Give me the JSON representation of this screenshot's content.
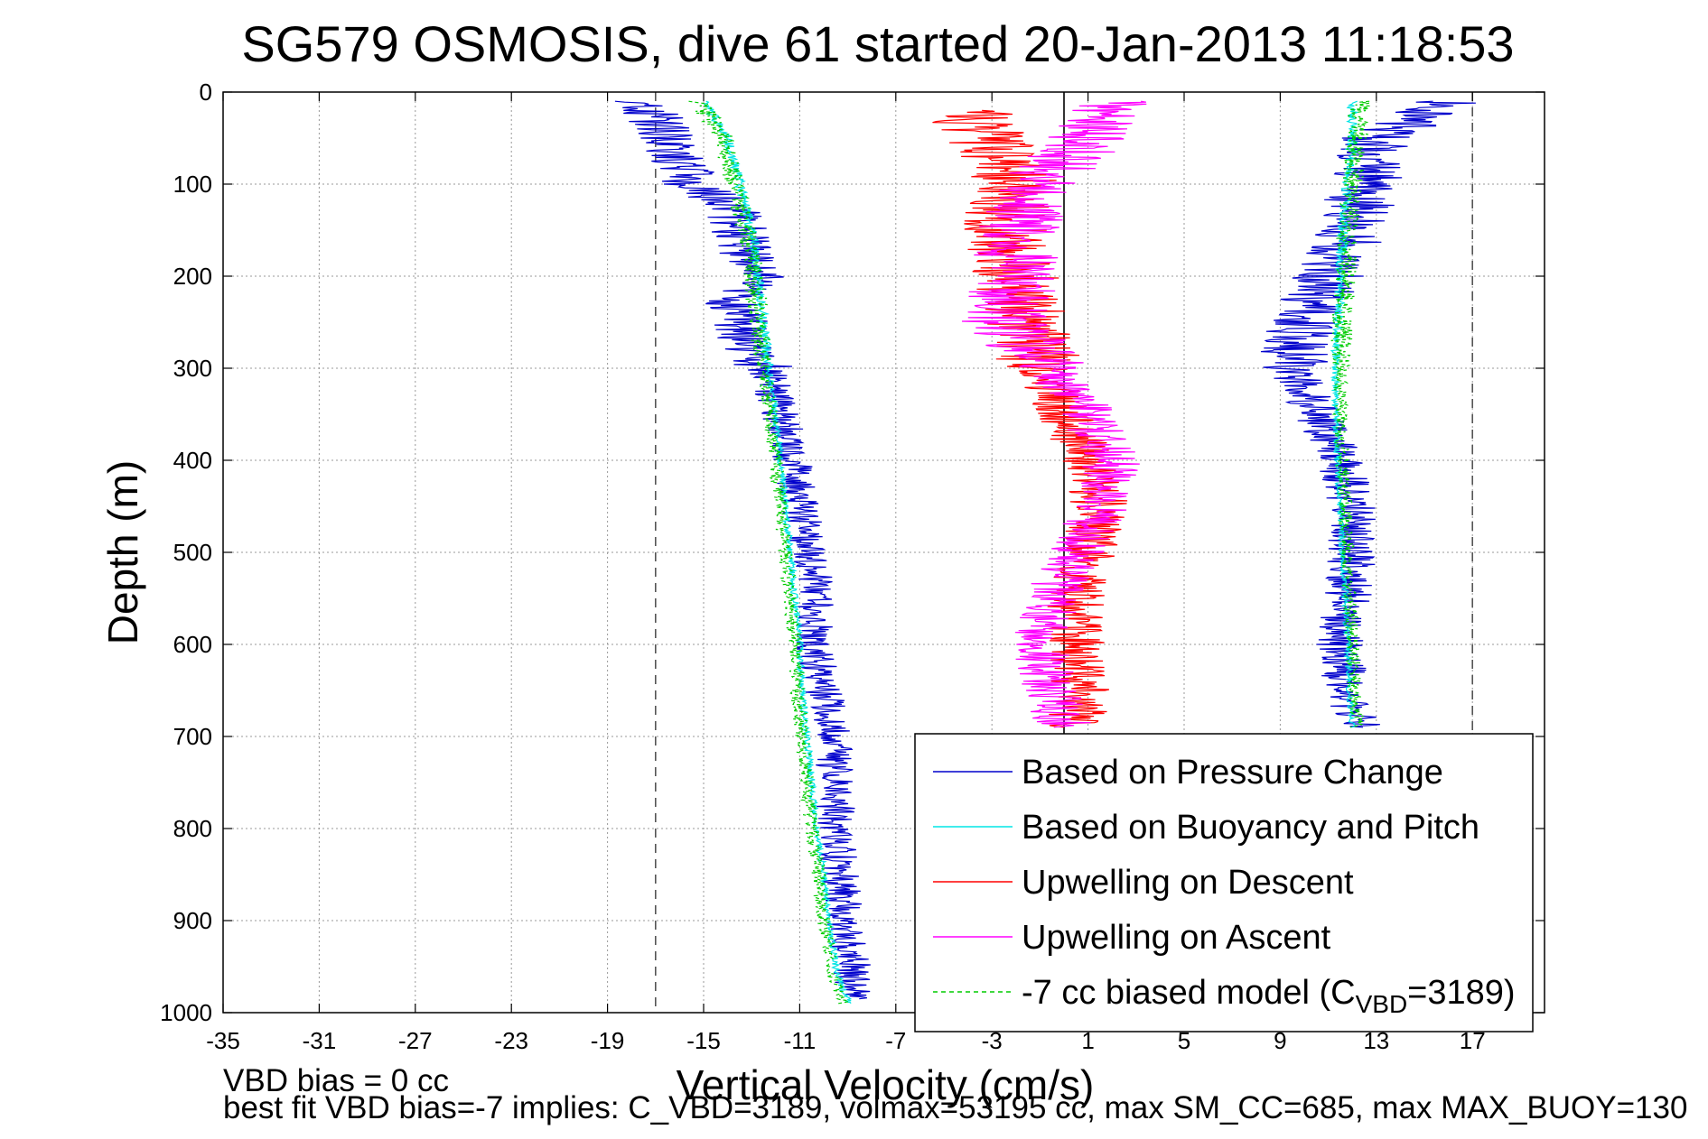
{
  "chart_data": {
    "type": "line",
    "title": "SG579 OSMOSIS, dive 61 started 20-Jan-2013 11:18:53",
    "xlabel": "Vertical Velocity (cm/s)",
    "ylabel": "Depth (m)",
    "xlim": [
      -35,
      20
    ],
    "ylim": [
      0,
      1000
    ],
    "y_reversed": true,
    "grid": true,
    "x_ticks": [
      -35,
      -31,
      -27,
      -23,
      -19,
      -15,
      -11,
      -7,
      -3,
      1,
      5,
      9,
      13,
      17
    ],
    "y_ticks": [
      0,
      100,
      200,
      300,
      400,
      500,
      600,
      700,
      800,
      900,
      1000
    ],
    "reference_lines": [
      {
        "x": -17,
        "style": "dashed",
        "color": "#555555"
      },
      {
        "x": 17,
        "style": "dashed",
        "color": "#555555"
      },
      {
        "x": 0,
        "style": "solid",
        "color": "#000000"
      }
    ],
    "legend_position": "bottom-right",
    "legend": {
      "entries": [
        {
          "label": "Based on Pressure Change",
          "color": "#0000cc",
          "style": "solid"
        },
        {
          "label": "Based on Buoyancy and Pitch",
          "color": "#00e5e5",
          "style": "solid"
        },
        {
          "label": "Upwelling on Descent",
          "color": "#ff0000",
          "style": "solid"
        },
        {
          "label": "Upwelling on Ascent",
          "color": "#ff00ff",
          "style": "solid"
        },
        {
          "label_prefix": "-7 cc biased model (C",
          "label_sub": "VBD",
          "label_suffix": "=3189)",
          "color": "#00cc00",
          "style": "dashed"
        }
      ]
    },
    "series": [
      {
        "name": "Based on Pressure Change",
        "branch": "descent",
        "color": "#0000cc",
        "x": [
          -17.5,
          -16.5,
          -15.5,
          -14.0,
          -13.5,
          -13.3,
          -12.7,
          -13.8,
          -13.5,
          -13.2,
          -12.4,
          -11.8,
          -11.3,
          -11.0,
          -10.5,
          -10.3,
          -10.5,
          -10.0,
          -9.6,
          -9.5,
          -9.5,
          -9.3,
          -9.1,
          -8.8,
          -8.8
        ],
        "y": [
          10,
          50,
          100,
          120,
          150,
          175,
          200,
          225,
          250,
          280,
          300,
          350,
          400,
          450,
          500,
          550,
          600,
          650,
          700,
          750,
          800,
          850,
          900,
          950,
          985
        ],
        "noise": 0.8
      },
      {
        "name": "Based on Buoyancy and Pitch",
        "branch": "descent",
        "color": "#00e5e5",
        "x": [
          -15.0,
          -14.0,
          -13.5,
          -13.0,
          -12.7,
          -12.5,
          -12.3,
          -12.0,
          -11.8,
          -11.6,
          -11.4,
          -11.2,
          -11.0,
          -10.9,
          -10.7,
          -10.5,
          -10.3,
          -10.0,
          -9.8,
          -9.5,
          -9.3,
          -9.0,
          -9.0
        ],
        "y": [
          10,
          50,
          100,
          150,
          200,
          250,
          300,
          350,
          400,
          450,
          500,
          550,
          600,
          650,
          700,
          750,
          800,
          850,
          900,
          950,
          970,
          985,
          990
        ],
        "noise": 0.15
      },
      {
        "name": "-7 cc biased model",
        "branch": "descent",
        "color": "#00cc00",
        "x": [
          -15.2,
          -14.2,
          -13.7,
          -13.2,
          -12.9,
          -12.7,
          -12.5,
          -12.2,
          -12.0,
          -11.8,
          -11.6,
          -11.4,
          -11.2,
          -11.1,
          -10.9,
          -10.7,
          -10.5,
          -10.2,
          -10.0,
          -9.7,
          -9.5,
          -9.2,
          -9.2
        ],
        "y": [
          10,
          50,
          100,
          150,
          200,
          250,
          300,
          350,
          400,
          450,
          500,
          550,
          600,
          650,
          700,
          750,
          800,
          850,
          900,
          950,
          970,
          985,
          990
        ],
        "noise": 0.3
      },
      {
        "name": "Based on Pressure Change",
        "branch": "ascent",
        "color": "#0000cc",
        "x": [
          16.0,
          13.0,
          12.5,
          12.0,
          11.0,
          10.0,
          9.5,
          10.5,
          11.5,
          12.0,
          12.0,
          11.8,
          11.5,
          11.8,
          12.2,
          12.2
        ],
        "y": [
          10,
          50,
          100,
          150,
          200,
          250,
          300,
          350,
          400,
          450,
          500,
          550,
          600,
          650,
          680,
          690
        ],
        "noise": 1.0
      },
      {
        "name": "Based on Buoyancy and Pitch",
        "branch": "ascent",
        "color": "#00e5e5",
        "x": [
          12.0,
          12.0,
          11.8,
          11.6,
          11.5,
          11.4,
          11.3,
          11.3,
          11.4,
          11.5,
          11.6,
          11.7,
          11.8,
          11.9,
          12.0
        ],
        "y": [
          10,
          50,
          100,
          150,
          200,
          250,
          300,
          350,
          400,
          450,
          500,
          550,
          600,
          650,
          690
        ],
        "noise": 0.15
      },
      {
        "name": "-7 cc biased model",
        "branch": "ascent",
        "color": "#00cc00",
        "x": [
          12.3,
          12.2,
          12.0,
          11.8,
          11.7,
          11.6,
          11.5,
          11.5,
          11.6,
          11.7,
          11.8,
          11.9,
          12.0,
          12.1,
          12.2
        ],
        "y": [
          10,
          50,
          100,
          150,
          200,
          250,
          300,
          350,
          400,
          450,
          500,
          550,
          600,
          650,
          690
        ],
        "noise": 0.3
      },
      {
        "name": "Upwelling on Descent",
        "color": "#ff0000",
        "x": [
          -4.0,
          -3.0,
          -2.0,
          -2.5,
          -2.0,
          -1.5,
          -1.0,
          0.0,
          1.0,
          1.5,
          1.0,
          0.5,
          0.5,
          0.7,
          0.5
        ],
        "y": [
          20,
          60,
          100,
          150,
          200,
          250,
          300,
          350,
          400,
          450,
          500,
          550,
          600,
          650,
          690
        ],
        "noise": 1.2
      },
      {
        "name": "Upwelling on Ascent",
        "color": "#ff00ff",
        "x": [
          2.0,
          1.0,
          -1.0,
          -2.0,
          -2.0,
          -2.5,
          -0.5,
          1.0,
          2.0,
          1.5,
          0.5,
          -0.5,
          -1.0,
          -0.5,
          0.0
        ],
        "y": [
          10,
          50,
          100,
          150,
          200,
          250,
          300,
          350,
          400,
          450,
          500,
          550,
          600,
          650,
          690
        ],
        "noise": 1.2
      }
    ]
  },
  "annotations": {
    "vbd_bias": "VBD bias = 0 cc",
    "best_fit": "best fit VBD bias=-7 implies: C_VBD=3189, volmax=53195 cc, max SM_CC=685, max MAX_BUOY=130"
  },
  "colors": {
    "axis": "#000000",
    "grid": "#999999",
    "background": "#ffffff"
  }
}
